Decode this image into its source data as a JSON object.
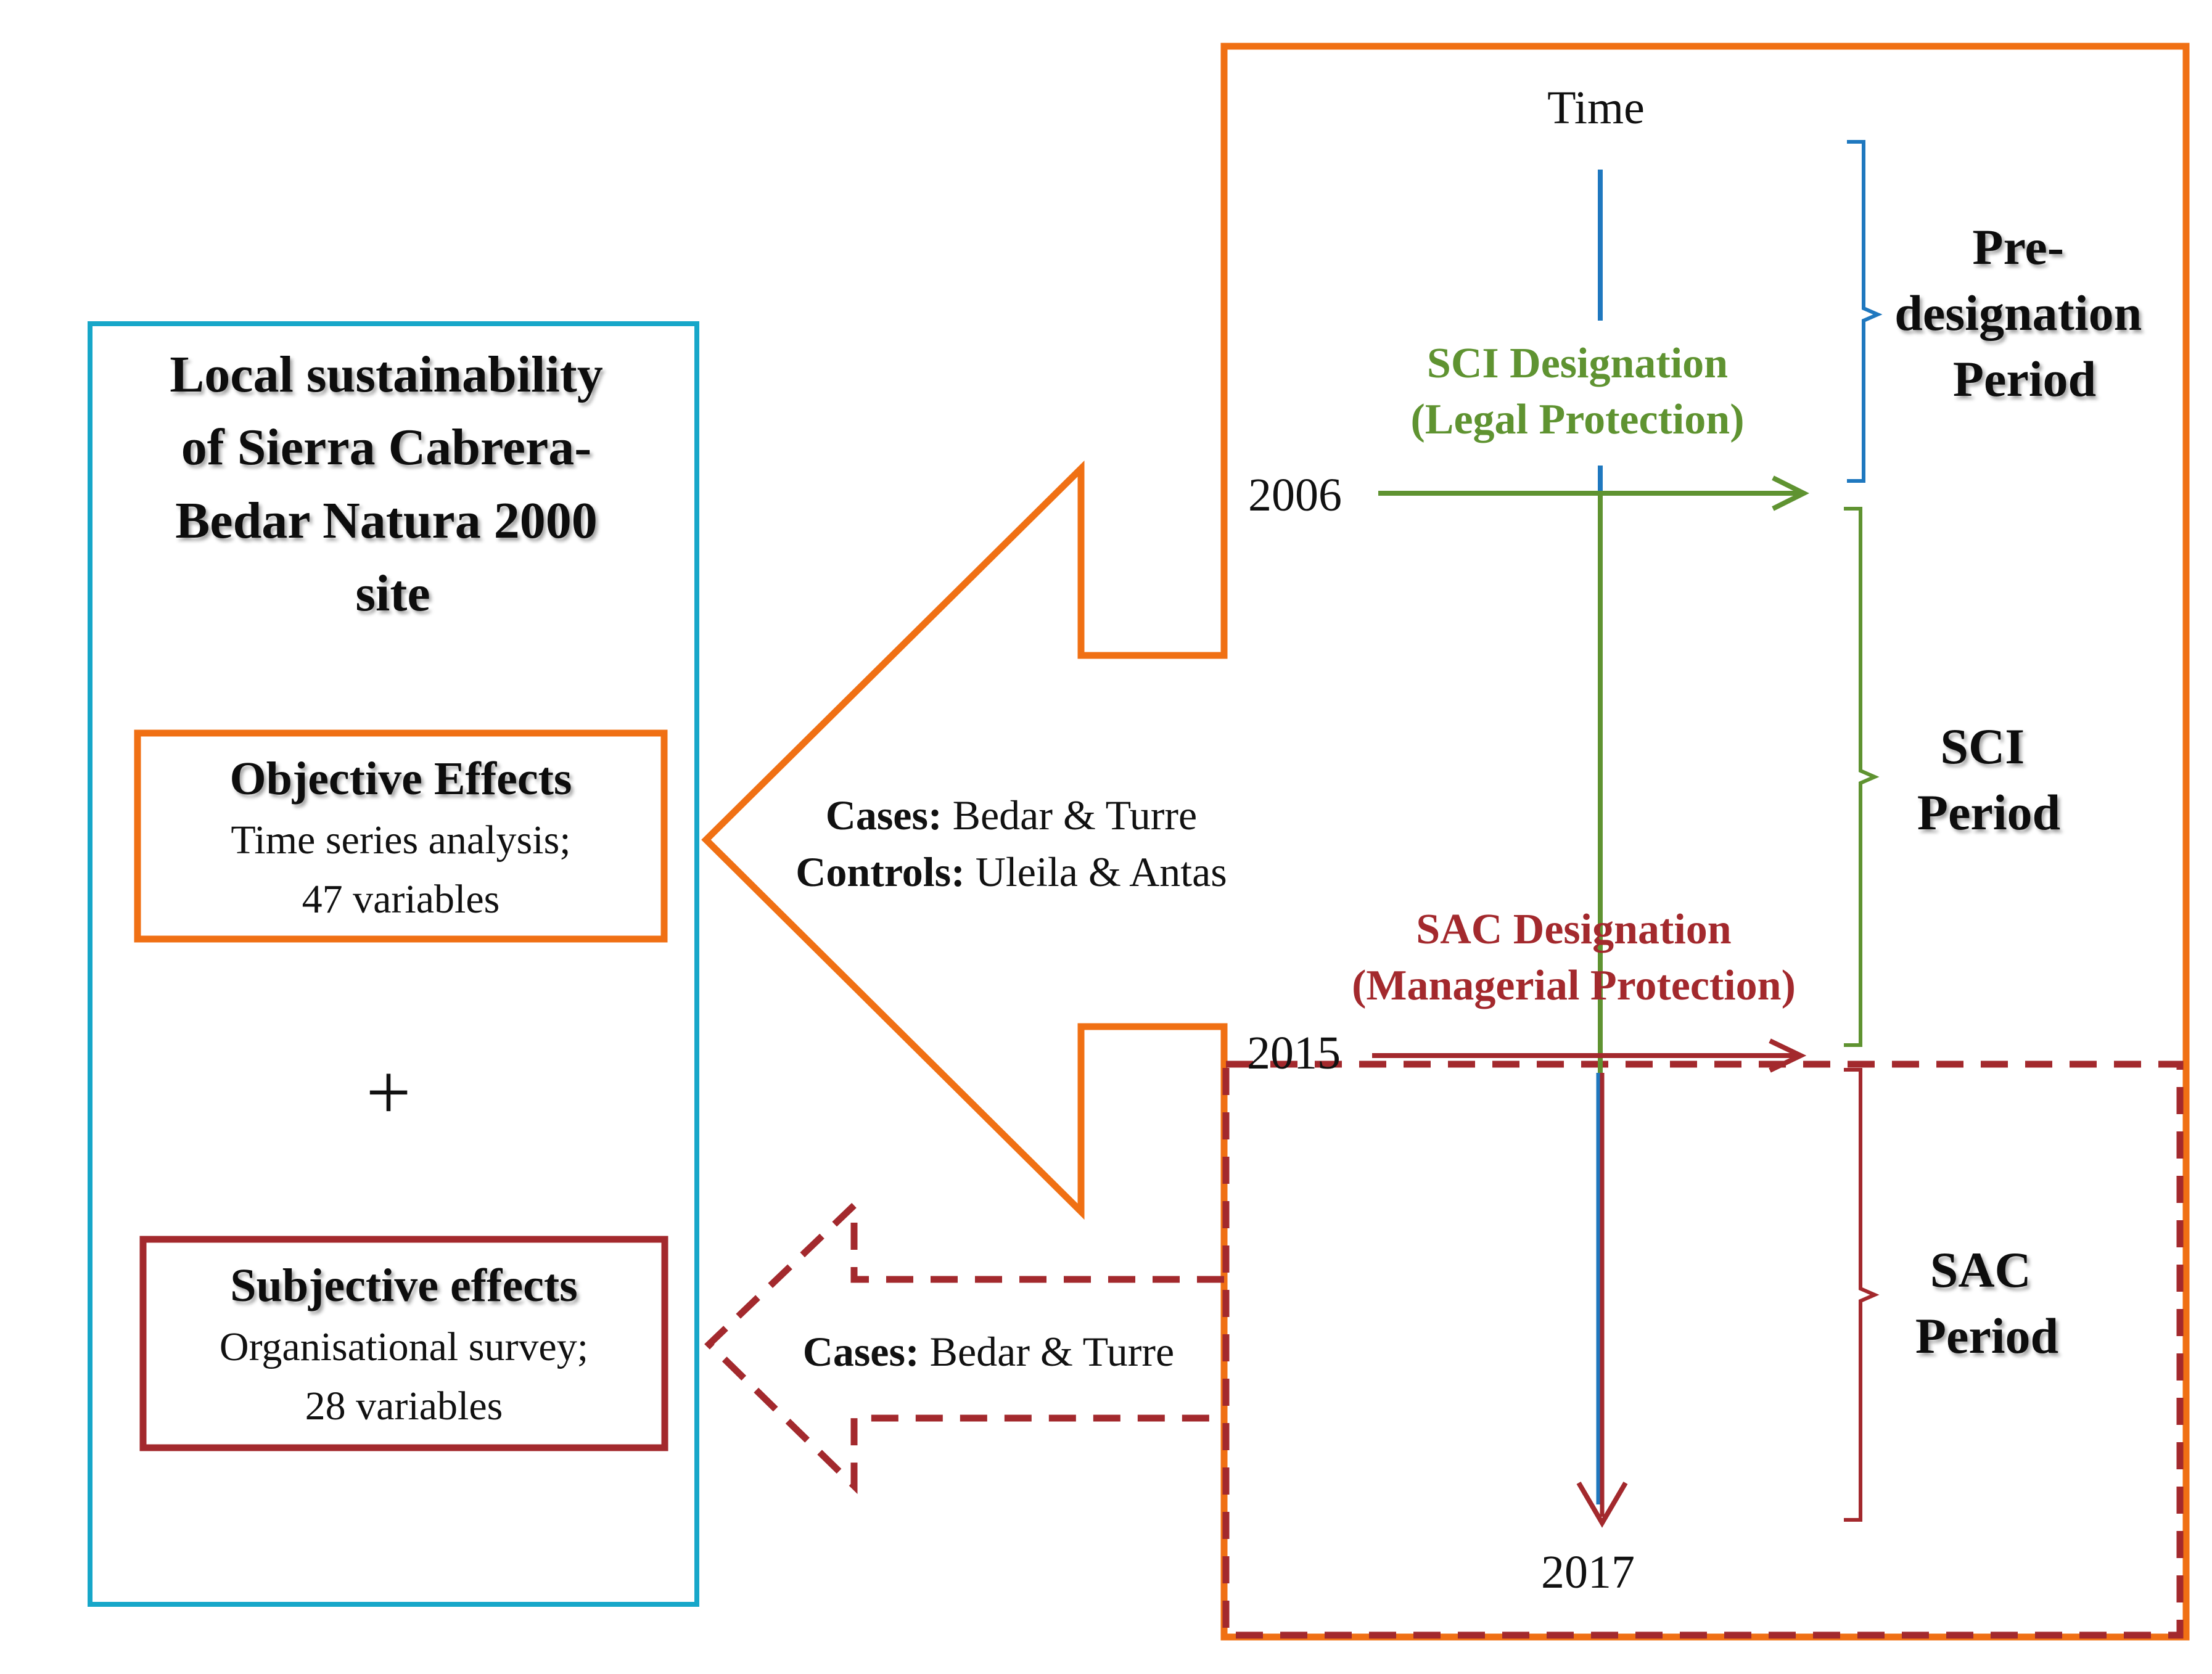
{
  "colors": {
    "orange": "#f07014",
    "cyan": "#17a7c9",
    "dark_red": "#a3292d",
    "green": "#5f9331",
    "blue": "#1f78bf",
    "text": "#111111"
  },
  "left_panel": {
    "title_lines": [
      "Local sustainability",
      "of Sierra Cabrera-",
      "Bedar Natura 2000",
      "site"
    ],
    "objective": {
      "title": "Objective Effects",
      "line1": "Time series analysis;",
      "line2": "47 variables"
    },
    "plus": "+",
    "subjective": {
      "title": "Subjective effects",
      "line1": "Organisational survey;",
      "line2": "28 variables"
    }
  },
  "arrows": {
    "objective_cases_label": "Cases:",
    "objective_cases_value": " Bedar & Turre",
    "objective_controls_label": "Controls:",
    "objective_controls_value": " Uleila & Antas",
    "subjective_cases_label": "Cases:",
    "subjective_cases_value": " Bedar & Turre"
  },
  "timeline": {
    "title": "Time",
    "year_2006": "2006",
    "year_2015": "2015",
    "year_2017": "2017",
    "sci_designation_line1": "SCI Designation",
    "sci_designation_line2": "(Legal Protection)",
    "sac_designation_line1": "SAC Designation",
    "sac_designation_line2": "(Managerial Protection)"
  },
  "periods": {
    "pre_line1": "Pre-",
    "pre_line2": "designation",
    "pre_line3": "Period",
    "sci_line1": "SCI",
    "sci_line2": "Period",
    "sac_line1": "SAC",
    "sac_line2": "Period"
  }
}
